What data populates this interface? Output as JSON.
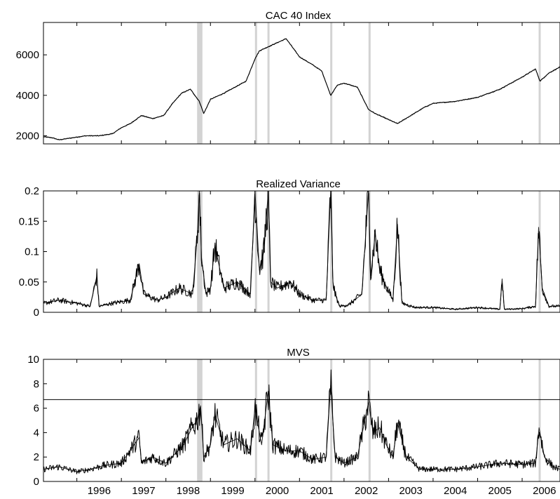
{
  "chart_data": [
    {
      "type": "line",
      "title": "CAC 40 Index",
      "xlabel": "",
      "ylabel": "",
      "xlim": [
        1995.25,
        2006.85
      ],
      "ylim": [
        1600,
        7600
      ],
      "yticks": [
        2000,
        4000,
        6000
      ],
      "grid": false,
      "shaded_periods": [
        [
          1998.7,
          1998.82
        ],
        [
          2000.0,
          2000.04
        ],
        [
          2000.28,
          2000.31
        ],
        [
          2001.69,
          2001.73
        ],
        [
          2002.55,
          2002.59
        ],
        [
          2006.37,
          2006.4
        ]
      ],
      "series": [
        {
          "x": [
            1995.25,
            1995.45,
            1995.6,
            1995.9,
            1996.2,
            1996.5,
            1996.8,
            1997.0,
            1997.2,
            1997.45,
            1997.7,
            1997.95,
            1998.15,
            1998.35,
            1998.55,
            1998.75,
            1998.85,
            1999.0,
            1999.3,
            1999.55,
            1999.8,
            2000.0,
            2000.1,
            2000.3,
            2000.5,
            2000.7,
            2001.0,
            2001.3,
            2001.5,
            2001.7,
            2001.85,
            2002.0,
            2002.3,
            2002.55,
            2002.7,
            2002.9,
            2003.2,
            2003.5,
            2003.8,
            2004.0,
            2004.5,
            2005.0,
            2005.5,
            2006.0,
            2006.3,
            2006.4,
            2006.6,
            2006.85
          ],
          "values": [
            1950,
            1900,
            1800,
            1900,
            2000,
            2000,
            2100,
            2400,
            2600,
            3000,
            2850,
            3000,
            3600,
            4100,
            4300,
            3700,
            3100,
            3800,
            4100,
            4400,
            4700,
            5800,
            6200,
            6400,
            6600,
            6800,
            5900,
            5500,
            5200,
            4000,
            4500,
            4600,
            4400,
            3300,
            3100,
            2900,
            2600,
            3000,
            3400,
            3600,
            3700,
            3900,
            4300,
            4900,
            5300,
            4700,
            5100,
            5400
          ]
        }
      ]
    },
    {
      "type": "line",
      "title": "Realized Variance",
      "xlabel": "",
      "ylabel": "",
      "xlim": [
        1995.25,
        2006.85
      ],
      "ylim": [
        0,
        0.2
      ],
      "yticks": [
        0,
        0.05,
        0.1,
        0.15,
        0.2
      ],
      "grid": false,
      "shaded_periods": [
        [
          1998.7,
          1998.82
        ],
        [
          2000.0,
          2000.04
        ],
        [
          2000.28,
          2000.31
        ],
        [
          2001.69,
          2001.73
        ],
        [
          2002.55,
          2002.59
        ],
        [
          2006.37,
          2006.4
        ]
      ],
      "series": [
        {
          "x": [
            1995.25,
            1995.6,
            1996.0,
            1996.3,
            1996.45,
            1996.5,
            1996.8,
            1997.2,
            1997.4,
            1997.5,
            1997.8,
            1998.0,
            1998.3,
            1998.6,
            1998.7,
            1998.75,
            1998.8,
            1998.9,
            1999.0,
            1999.1,
            1999.3,
            1999.6,
            1999.9,
            2000.0,
            2000.1,
            2000.2,
            2000.3,
            2000.35,
            2000.5,
            2000.8,
            2001.0,
            2001.3,
            2001.6,
            2001.7,
            2001.75,
            2001.8,
            2001.9,
            2002.1,
            2002.4,
            2002.55,
            2002.6,
            2002.7,
            2002.8,
            2002.9,
            2003.1,
            2003.2,
            2003.3,
            2003.6,
            2004.0,
            2004.5,
            2005.0,
            2005.5,
            2005.55,
            2005.6,
            2006.0,
            2006.3,
            2006.37,
            2006.45,
            2006.6,
            2006.85
          ],
          "values": [
            0.015,
            0.02,
            0.015,
            0.01,
            0.06,
            0.01,
            0.015,
            0.02,
            0.08,
            0.03,
            0.02,
            0.025,
            0.04,
            0.03,
            0.12,
            0.2,
            0.09,
            0.03,
            0.04,
            0.11,
            0.04,
            0.05,
            0.03,
            0.2,
            0.07,
            0.1,
            0.2,
            0.05,
            0.04,
            0.05,
            0.03,
            0.02,
            0.02,
            0.2,
            0.05,
            0.03,
            0.01,
            0.012,
            0.03,
            0.2,
            0.06,
            0.13,
            0.07,
            0.05,
            0.02,
            0.145,
            0.015,
            0.008,
            0.008,
            0.005,
            0.008,
            0.005,
            0.055,
            0.005,
            0.006,
            0.01,
            0.14,
            0.04,
            0.01,
            0.01
          ]
        }
      ]
    },
    {
      "type": "line",
      "title": "MVS",
      "xlabel": "",
      "ylabel": "",
      "xlim": [
        1995.25,
        2006.85
      ],
      "ylim": [
        0,
        10
      ],
      "yticks": [
        0,
        2,
        4,
        6,
        8,
        10
      ],
      "xticks": [
        "1996",
        "1997",
        "1998",
        "1999",
        "2000",
        "2001",
        "2002",
        "2003",
        "2004",
        "2005",
        "2006"
      ],
      "grid": false,
      "threshold": 6.7,
      "shaded_periods": [
        [
          1998.7,
          1998.82
        ],
        [
          2000.0,
          2000.04
        ],
        [
          2000.28,
          2000.31
        ],
        [
          2001.69,
          2001.73
        ],
        [
          2002.55,
          2002.59
        ],
        [
          2006.37,
          2006.4
        ]
      ],
      "series": [
        {
          "x": [
            1995.25,
            1995.6,
            1996.0,
            1996.3,
            1996.6,
            1997.0,
            1997.4,
            1997.45,
            1997.7,
            1998.0,
            1998.4,
            1998.6,
            1998.7,
            1998.78,
            1998.85,
            1999.0,
            1999.1,
            1999.3,
            1999.6,
            1999.9,
            2000.0,
            2000.15,
            2000.3,
            2000.4,
            2000.7,
            2001.0,
            2001.3,
            2001.6,
            2001.7,
            2001.8,
            2002.0,
            2002.3,
            2002.55,
            2002.65,
            2002.8,
            2002.95,
            2003.1,
            2003.2,
            2003.4,
            2003.7,
            2004.0,
            2004.5,
            2005.0,
            2005.5,
            2006.0,
            2006.3,
            2006.38,
            2006.5,
            2006.7,
            2006.85
          ],
          "values": [
            1.0,
            1.2,
            0.8,
            1.0,
            1.3,
            1.5,
            3.6,
            1.5,
            2.0,
            1.5,
            3.0,
            4.5,
            5.0,
            6.2,
            2.0,
            3.0,
            5.5,
            3.0,
            3.5,
            2.5,
            6.0,
            3.0,
            7.4,
            3.0,
            2.5,
            2.5,
            1.8,
            2.0,
            7.9,
            2.0,
            1.5,
            2.0,
            6.5,
            4.0,
            4.4,
            3.0,
            2.0,
            4.8,
            2.0,
            1.0,
            1.0,
            1.0,
            1.2,
            1.5,
            1.4,
            1.5,
            4.4,
            2.0,
            1.2,
            1.0
          ]
        }
      ]
    }
  ]
}
